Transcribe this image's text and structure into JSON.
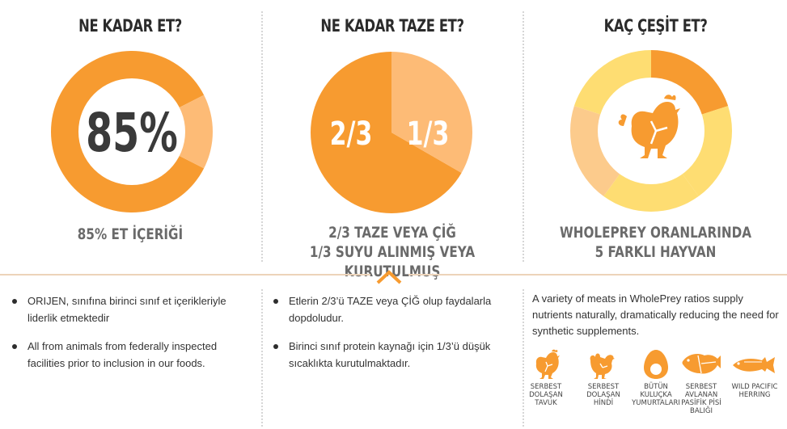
{
  "colors": {
    "orange": "#f79b30",
    "light_orange": "#fdbb76",
    "yellow": "#fedd72",
    "pale_orange": "#fccb8c",
    "text": "#333333"
  },
  "panels": [
    {
      "heading": "NE KADAR ET?",
      "center_value": "85%",
      "caption": [
        "85% ET İÇERİĞİ"
      ],
      "chart_data": {
        "type": "pie",
        "values": [
          85,
          15
        ],
        "labels": [
          "",
          ""
        ]
      }
    },
    {
      "heading": "NE KADAR TAZE ET?",
      "left_value": "2/3",
      "right_value": "1/3",
      "caption": [
        "2/3 TAZE VEYA ÇİĞ",
        "1/3 SUYU ALINMIŞ VEYA KURUTULMUŞ"
      ],
      "chart_data": {
        "type": "pie",
        "values": [
          2,
          1
        ],
        "labels": [
          "2/3",
          "1/3"
        ]
      }
    },
    {
      "heading": "KAÇ ÇEŞİT ET?",
      "icon": "chicken-icon",
      "caption": [
        "WHOLEPREY ORANLARINDA",
        "5 FARKLI HAYVAN"
      ],
      "chart_data": {
        "type": "pie",
        "values": [
          20,
          20,
          20,
          20,
          20
        ],
        "labels": [
          "",
          "",
          "",
          "",
          ""
        ]
      }
    }
  ],
  "bullets_1": [
    "ORIJEN, sınıfına birinci sınıf et içerikleriyle liderlik etmektedir",
    "All from animals from federally inspected facilities prior to inclusion in our foods."
  ],
  "bullets_2": [
    "Etlerin 2/3’ü TAZE veya ÇİĞ olup faydalarla dopdoludur.",
    "Birinci sınıf protein kaynağı için 1/3’ü düşük sıcaklıkta kurutulmaktadır."
  ],
  "column3_text": "A variety of meats in WholePrey ratios supply nutrients naturally, dramatically reducing the need for synthetic supplements.",
  "animals": [
    {
      "icon": "chicken-icon",
      "label": "SERBEST\nDOLAŞAN\nTAVUK"
    },
    {
      "icon": "turkey-icon",
      "label": "SERBEST\nDOLAŞAN HİNDİ"
    },
    {
      "icon": "egg-icon",
      "label": "BÜTÜN\nKULUÇKA\nYUMURTALARI"
    },
    {
      "icon": "flatfish-icon",
      "label": "SERBEST\nAVLANAN\nPASİFİK PİSİ\nBALIĞI"
    },
    {
      "icon": "herring-icon",
      "label": "WILD PACIFIC\nHERRING"
    }
  ]
}
